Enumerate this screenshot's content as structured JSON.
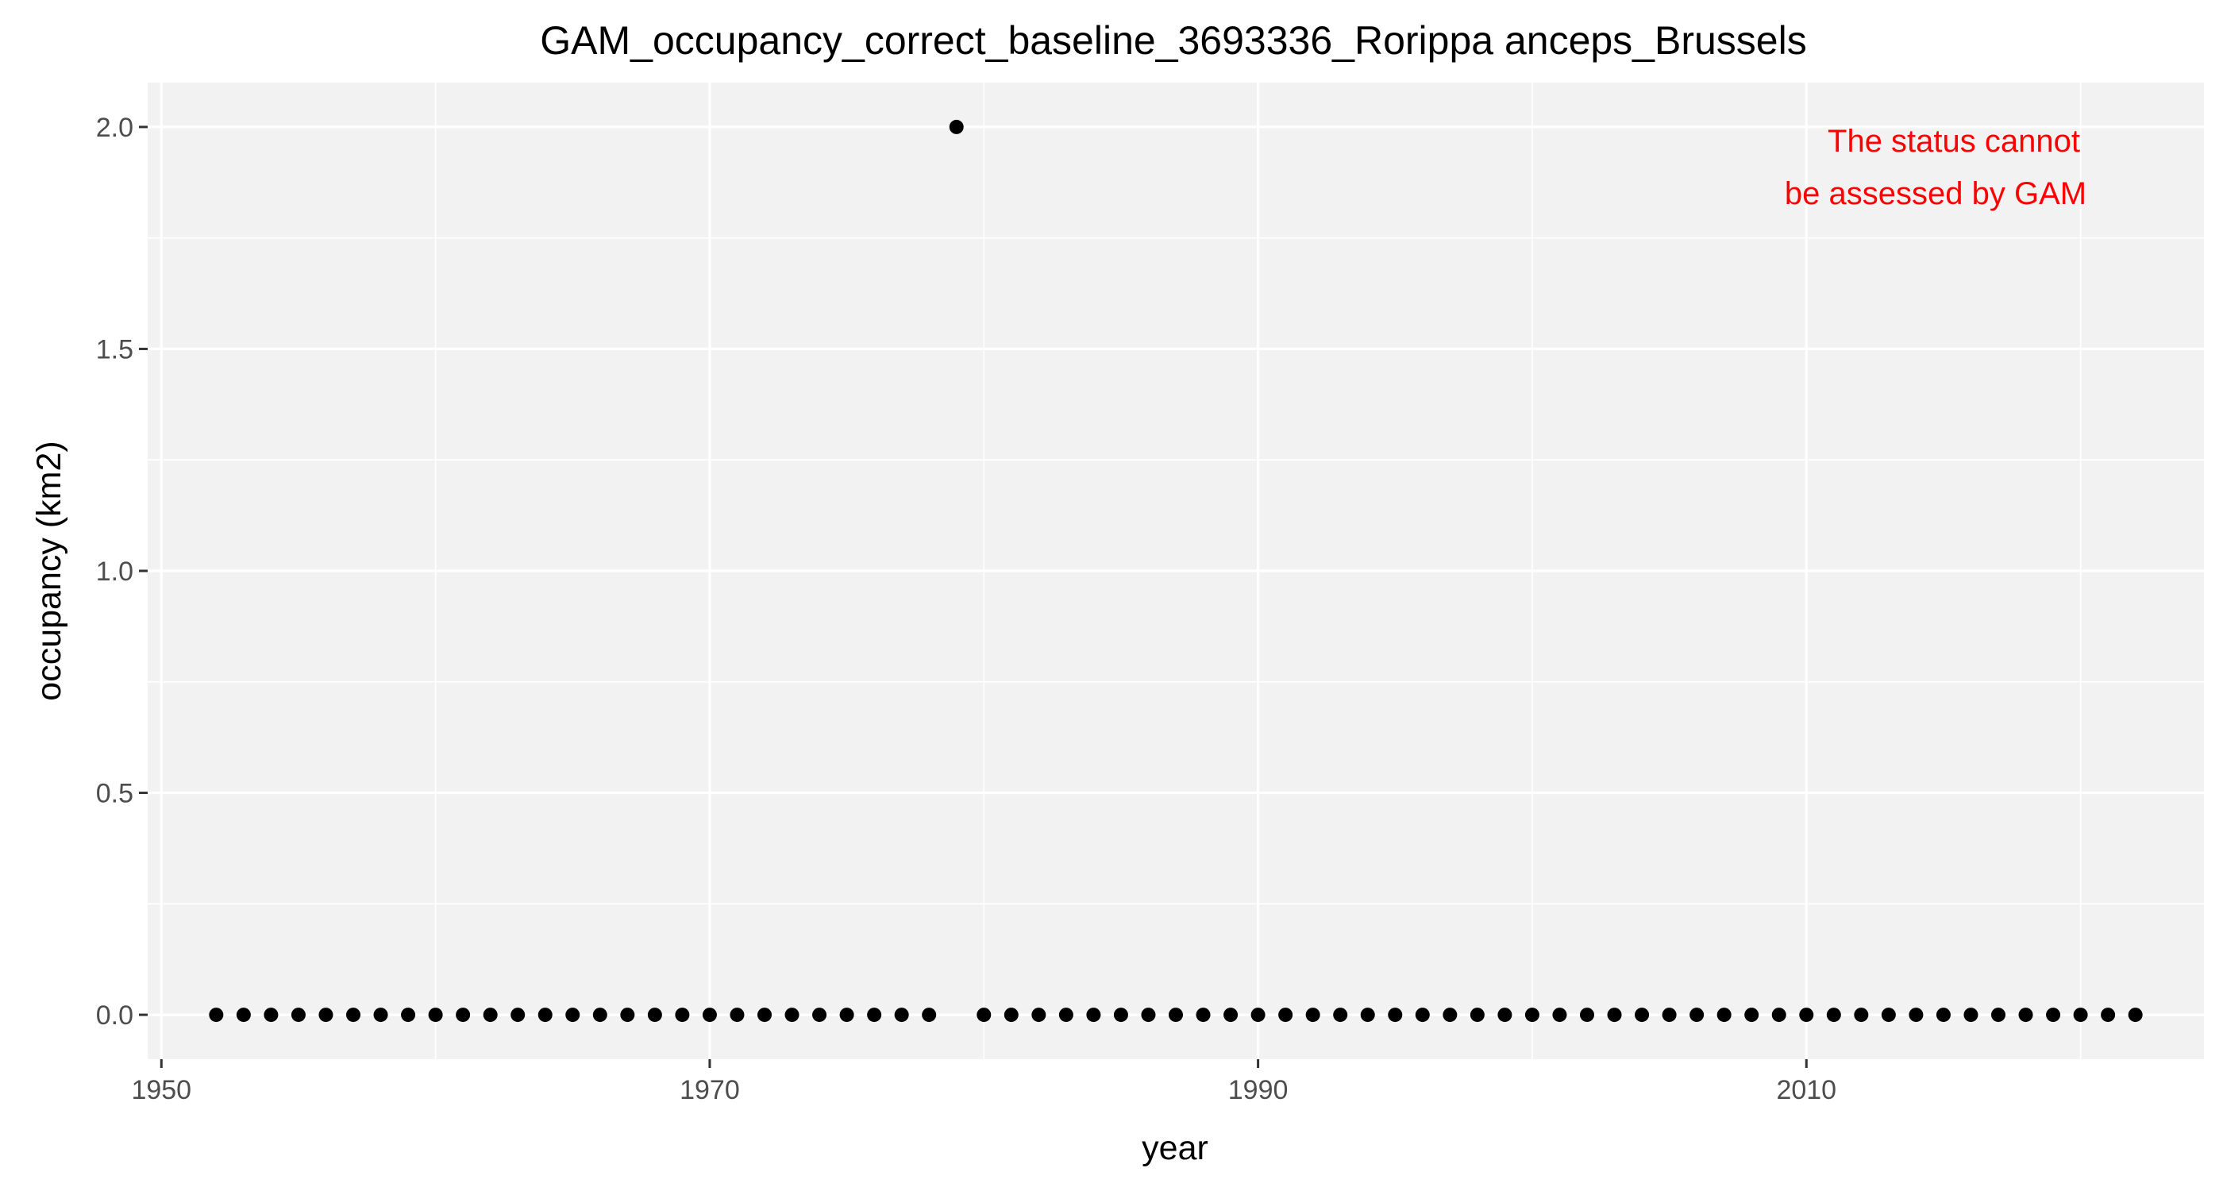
{
  "chart_data": {
    "type": "scatter",
    "title": "GAM_occupancy_correct_baseline_3693336_Rorippa anceps_Brussels",
    "xlabel": "year",
    "ylabel": "occupancy (km2)",
    "xlim": [
      1949.5,
      2024.5
    ],
    "ylim": [
      -0.1,
      2.1
    ],
    "x_ticks": [
      1950,
      1970,
      1990,
      2010
    ],
    "x_tick_labels": [
      "1950",
      "1970",
      "1990",
      "2010"
    ],
    "y_ticks": [
      0,
      0.5,
      1,
      1.5,
      2
    ],
    "y_tick_labels": [
      "0.0",
      "0.5",
      "1.0",
      "1.5",
      "2.0"
    ],
    "grid": true,
    "legend": "none",
    "point_color": "#000000",
    "panel_color": "#f2f2f2",
    "gridline_color": "#ffffff",
    "annotation": {
      "lines": [
        "The status cannot",
        "be assessed by GAM"
      ],
      "color": "#ff0000",
      "placement": "top-right"
    },
    "series": [
      {
        "x": [
          1952,
          1953,
          1954,
          1955,
          1956,
          1957,
          1958,
          1959,
          1960,
          1961,
          1962,
          1963,
          1964,
          1965,
          1966,
          1967,
          1968,
          1969,
          1970,
          1971,
          1972,
          1973,
          1974,
          1975,
          1976,
          1977,
          1978,
          1979,
          1980,
          1981,
          1982,
          1983,
          1984,
          1985,
          1986,
          1987,
          1988,
          1989,
          1990,
          1991,
          1992,
          1993,
          1994,
          1995,
          1996,
          1997,
          1998,
          1999,
          2000,
          2001,
          2002,
          2003,
          2004,
          2005,
          2006,
          2007,
          2008,
          2009,
          2010,
          2011,
          2012,
          2013,
          2014,
          2015,
          2016,
          2017,
          2018,
          2019,
          2020,
          2021,
          2022
        ],
        "y": [
          0,
          0,
          0,
          0,
          0,
          0,
          0,
          0,
          0,
          0,
          0,
          0,
          0,
          0,
          0,
          0,
          0,
          0,
          0,
          0,
          0,
          0,
          0,
          0,
          0,
          0,
          0,
          2,
          0,
          0,
          0,
          0,
          0,
          0,
          0,
          0,
          0,
          0,
          0,
          0,
          0,
          0,
          0,
          0,
          0,
          0,
          0,
          0,
          0,
          0,
          0,
          0,
          0,
          0,
          0,
          0,
          0,
          0,
          0,
          0,
          0,
          0,
          0,
          0,
          0,
          0,
          0,
          0,
          0,
          0,
          0
        ]
      }
    ]
  }
}
